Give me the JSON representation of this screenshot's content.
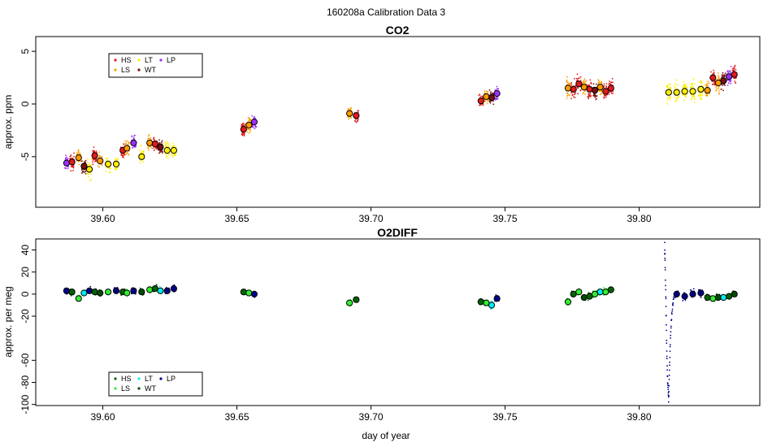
{
  "figure": {
    "title": "160208a   Calibration Data 3",
    "xlabel": "day of year"
  },
  "legend_entries": [
    {
      "label": "HS",
      "key": "HS"
    },
    {
      "label": "LS",
      "key": "LS"
    },
    {
      "label": "LT",
      "key": "LT"
    },
    {
      "label": "WT",
      "key": "WT"
    },
    {
      "label": "LP",
      "key": "LP"
    }
  ],
  "chart_data": [
    {
      "type": "scatter",
      "title": "CO2",
      "xlabel": "",
      "ylabel": "approx. ppm",
      "xlim": [
        39.575,
        39.845
      ],
      "ylim": [
        -9.8,
        6.4
      ],
      "xticks": [
        39.6,
        39.65,
        39.7,
        39.75,
        39.8
      ],
      "xtick_labels": [
        "39.60",
        "39.65",
        "39.70",
        "39.75",
        "39.80"
      ],
      "yticks": [
        -5,
        0,
        5
      ],
      "ytick_labels": [
        "-5",
        "0",
        "5"
      ],
      "grid": false,
      "legend_position": "top-left",
      "series_colors": {
        "HS": "#e41a1c",
        "LS": "#ff9c00",
        "LT": "#ffee00",
        "WT": "#7a1010",
        "LP": "#9b30ff"
      },
      "groups": [
        {
          "x": 39.5865,
          "y": -5.6,
          "series": "LP",
          "sd": 0.6
        },
        {
          "x": 39.5885,
          "y": -5.5,
          "series": "HS",
          "sd": 0.7
        },
        {
          "x": 39.591,
          "y": -5.1,
          "series": "LS",
          "sd": 0.6
        },
        {
          "x": 39.593,
          "y": -5.9,
          "series": "WT",
          "sd": 0.6
        },
        {
          "x": 39.595,
          "y": -6.2,
          "series": "LT",
          "sd": 0.9
        },
        {
          "x": 39.597,
          "y": -4.9,
          "series": "HS",
          "sd": 0.7
        },
        {
          "x": 39.599,
          "y": -5.4,
          "series": "LS",
          "sd": 0.6
        },
        {
          "x": 39.602,
          "y": -5.7,
          "series": "LT",
          "sd": 0.6
        },
        {
          "x": 39.605,
          "y": -5.7,
          "series": "LT",
          "sd": 0.6
        },
        {
          "x": 39.6075,
          "y": -4.4,
          "series": "HS",
          "sd": 0.6
        },
        {
          "x": 39.609,
          "y": -4.2,
          "series": "LS",
          "sd": 0.6
        },
        {
          "x": 39.6115,
          "y": -3.7,
          "series": "LP",
          "sd": 0.6
        },
        {
          "x": 39.6145,
          "y": -5.0,
          "series": "LT",
          "sd": 0.8
        },
        {
          "x": 39.6175,
          "y": -3.7,
          "series": "LS",
          "sd": 0.6
        },
        {
          "x": 39.6195,
          "y": -3.8,
          "series": "HS",
          "sd": 0.6
        },
        {
          "x": 39.6215,
          "y": -4.1,
          "series": "WT",
          "sd": 0.6
        },
        {
          "x": 39.624,
          "y": -4.4,
          "series": "LT",
          "sd": 0.6
        },
        {
          "x": 39.6265,
          "y": -4.4,
          "series": "LT",
          "sd": 0.6
        },
        {
          "x": 39.6525,
          "y": -2.4,
          "series": "HS",
          "sd": 0.6
        },
        {
          "x": 39.6545,
          "y": -2.0,
          "series": "LS",
          "sd": 0.6
        },
        {
          "x": 39.6565,
          "y": -1.7,
          "series": "LP",
          "sd": 0.6
        },
        {
          "x": 39.692,
          "y": -0.9,
          "series": "LS",
          "sd": 0.6
        },
        {
          "x": 39.6945,
          "y": -1.1,
          "series": "HS",
          "sd": 0.6
        },
        {
          "x": 39.741,
          "y": 0.3,
          "series": "HS",
          "sd": 0.6
        },
        {
          "x": 39.743,
          "y": 0.7,
          "series": "LS",
          "sd": 0.6
        },
        {
          "x": 39.745,
          "y": 0.6,
          "series": "WT",
          "sd": 0.6
        },
        {
          "x": 39.747,
          "y": 1.0,
          "series": "LP",
          "sd": 0.6
        },
        {
          "x": 39.7735,
          "y": 1.5,
          "series": "LS",
          "sd": 0.7
        },
        {
          "x": 39.7755,
          "y": 1.4,
          "series": "HS",
          "sd": 0.7
        },
        {
          "x": 39.7775,
          "y": 1.9,
          "series": "HS",
          "sd": 0.7
        },
        {
          "x": 39.7795,
          "y": 1.6,
          "series": "LS",
          "sd": 0.7
        },
        {
          "x": 39.7815,
          "y": 1.4,
          "series": "HS",
          "sd": 0.7
        },
        {
          "x": 39.7835,
          "y": 1.3,
          "series": "WT",
          "sd": 0.7
        },
        {
          "x": 39.7855,
          "y": 1.6,
          "series": "LS",
          "sd": 0.7
        },
        {
          "x": 39.7875,
          "y": 1.2,
          "series": "HS",
          "sd": 0.7
        },
        {
          "x": 39.7895,
          "y": 1.5,
          "series": "HS",
          "sd": 0.7
        },
        {
          "x": 39.811,
          "y": 1.1,
          "series": "LT",
          "sd": 0.8
        },
        {
          "x": 39.814,
          "y": 1.1,
          "series": "LT",
          "sd": 0.8
        },
        {
          "x": 39.817,
          "y": 1.2,
          "series": "LT",
          "sd": 0.8
        },
        {
          "x": 39.82,
          "y": 1.2,
          "series": "LT",
          "sd": 0.8
        },
        {
          "x": 39.823,
          "y": 1.4,
          "series": "LT",
          "sd": 0.8
        },
        {
          "x": 39.8255,
          "y": 1.3,
          "series": "LS",
          "sd": 0.8
        },
        {
          "x": 39.8275,
          "y": 2.5,
          "series": "HS",
          "sd": 0.8
        },
        {
          "x": 39.8295,
          "y": 2.0,
          "series": "LS",
          "sd": 0.8
        },
        {
          "x": 39.8315,
          "y": 2.2,
          "series": "WT",
          "sd": 0.8
        },
        {
          "x": 39.8335,
          "y": 2.6,
          "series": "LP",
          "sd": 0.8
        },
        {
          "x": 39.8355,
          "y": 2.8,
          "series": "HS",
          "sd": 0.8
        }
      ]
    },
    {
      "type": "scatter",
      "title": "O2DIFF",
      "xlabel": "day of year",
      "ylabel": "approx. per meg",
      "xlim": [
        39.575,
        39.845
      ],
      "ylim": [
        -101,
        50
      ],
      "xticks": [
        39.6,
        39.65,
        39.7,
        39.75,
        39.8
      ],
      "xtick_labels": [
        "39.60",
        "39.65",
        "39.70",
        "39.75",
        "39.80"
      ],
      "yticks": [
        40,
        20,
        0,
        -20,
        -60,
        -80,
        -100
      ],
      "ytick_labels": [
        "40",
        "20",
        "0",
        "-20",
        "-60",
        "-80",
        "-100"
      ],
      "grid": false,
      "legend_position": "bottom-left",
      "series_colors": {
        "HS": "#006400",
        "LS": "#33ee33",
        "LT": "#00eeee",
        "WT": "#004d00",
        "LP": "#00008b"
      },
      "groups": [
        {
          "x": 39.5865,
          "y": 3,
          "series": "LP",
          "sd": 2.5
        },
        {
          "x": 39.5885,
          "y": 2,
          "series": "HS",
          "sd": 2.5
        },
        {
          "x": 39.591,
          "y": -4,
          "series": "LS",
          "sd": 2
        },
        {
          "x": 39.593,
          "y": 1,
          "series": "LT",
          "sd": 2
        },
        {
          "x": 39.595,
          "y": 3,
          "series": "LP",
          "sd": 2.5
        },
        {
          "x": 39.597,
          "y": 2,
          "series": "HS",
          "sd": 2.5
        },
        {
          "x": 39.599,
          "y": 1,
          "series": "WT",
          "sd": 2.5
        },
        {
          "x": 39.602,
          "y": 2,
          "series": "LS",
          "sd": 2.5
        },
        {
          "x": 39.605,
          "y": 3,
          "series": "LP",
          "sd": 2.5
        },
        {
          "x": 39.6075,
          "y": 2,
          "series": "HS",
          "sd": 2.5
        },
        {
          "x": 39.609,
          "y": 1,
          "series": "LS",
          "sd": 2.5
        },
        {
          "x": 39.6115,
          "y": 3,
          "series": "LP",
          "sd": 2.5
        },
        {
          "x": 39.6145,
          "y": 2,
          "series": "WT",
          "sd": 2.5
        },
        {
          "x": 39.6175,
          "y": 4,
          "series": "LS",
          "sd": 2.5
        },
        {
          "x": 39.6195,
          "y": 5,
          "series": "HS",
          "sd": 2.5
        },
        {
          "x": 39.6215,
          "y": 3,
          "series": "LT",
          "sd": 2.5
        },
        {
          "x": 39.624,
          "y": 3,
          "series": "LP",
          "sd": 2.5
        },
        {
          "x": 39.6265,
          "y": 5,
          "series": "LP",
          "sd": 3
        },
        {
          "x": 39.6525,
          "y": 2,
          "series": "HS",
          "sd": 2
        },
        {
          "x": 39.6545,
          "y": 1,
          "series": "LS",
          "sd": 2
        },
        {
          "x": 39.6565,
          "y": 0,
          "series": "LP",
          "sd": 2
        },
        {
          "x": 39.692,
          "y": -8,
          "series": "LS",
          "sd": 2.5
        },
        {
          "x": 39.6945,
          "y": -5,
          "series": "HS",
          "sd": 2.5
        },
        {
          "x": 39.741,
          "y": -7,
          "series": "HS",
          "sd": 2.5
        },
        {
          "x": 39.743,
          "y": -8,
          "series": "LS",
          "sd": 2.5
        },
        {
          "x": 39.745,
          "y": -10,
          "series": "LT",
          "sd": 3
        },
        {
          "x": 39.747,
          "y": -4,
          "series": "LP",
          "sd": 2.5
        },
        {
          "x": 39.7735,
          "y": -7,
          "series": "LS",
          "sd": 2.5
        },
        {
          "x": 39.7755,
          "y": 0,
          "series": "HS",
          "sd": 2.5
        },
        {
          "x": 39.7775,
          "y": 2,
          "series": "LS",
          "sd": 2.5
        },
        {
          "x": 39.7795,
          "y": -3,
          "series": "WT",
          "sd": 2.5
        },
        {
          "x": 39.7815,
          "y": -2,
          "series": "HS",
          "sd": 2.5
        },
        {
          "x": 39.7835,
          "y": 0,
          "series": "LS",
          "sd": 2.5
        },
        {
          "x": 39.7855,
          "y": 2,
          "series": "LT",
          "sd": 2.5
        },
        {
          "x": 39.7875,
          "y": 2,
          "series": "LS",
          "sd": 2.5
        },
        {
          "x": 39.7895,
          "y": 4,
          "series": "HS",
          "sd": 2.5
        },
        {
          "x": 39.814,
          "y": 0,
          "series": "LP",
          "sd": 3
        },
        {
          "x": 39.817,
          "y": -2,
          "series": "LP",
          "sd": 3
        },
        {
          "x": 39.82,
          "y": 0,
          "series": "LP",
          "sd": 3
        },
        {
          "x": 39.823,
          "y": 1,
          "series": "LP",
          "sd": 3
        },
        {
          "x": 39.8255,
          "y": -3,
          "series": "HS",
          "sd": 2.5
        },
        {
          "x": 39.8275,
          "y": -4,
          "series": "LS",
          "sd": 2.5
        },
        {
          "x": 39.8295,
          "y": -3,
          "series": "WT",
          "sd": 2.5
        },
        {
          "x": 39.8315,
          "y": -3,
          "series": "LT",
          "sd": 2.5
        },
        {
          "x": 39.8335,
          "y": -2,
          "series": "HS",
          "sd": 2.5
        },
        {
          "x": 39.8355,
          "y": 0,
          "series": "WT",
          "sd": 2.5
        }
      ],
      "transient": {
        "series": "LP",
        "points": [
          [
            39.8095,
            45
          ],
          [
            39.8097,
            25
          ],
          [
            39.81,
            -5
          ],
          [
            39.8102,
            -40
          ],
          [
            39.8105,
            -70
          ],
          [
            39.8108,
            -85
          ],
          [
            39.811,
            -95
          ],
          [
            39.8113,
            -70
          ],
          [
            39.8116,
            -45
          ],
          [
            39.812,
            -25
          ],
          [
            39.8125,
            -10
          ],
          [
            39.813,
            -2
          ]
        ]
      }
    }
  ]
}
